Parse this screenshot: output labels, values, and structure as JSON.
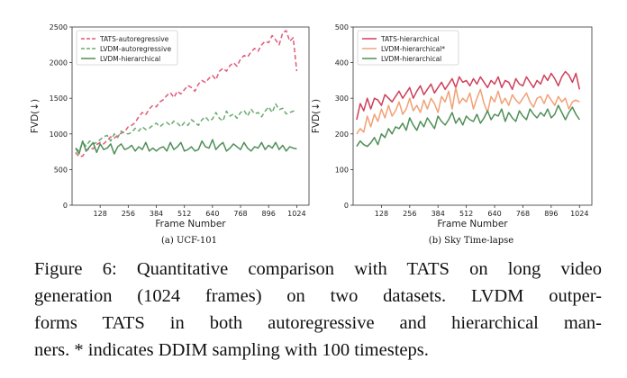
{
  "chart_data": [
    {
      "type": "line",
      "title": "",
      "subcaption": "(a) UCF-101",
      "xlabel": "Frame Number",
      "ylabel": "FVD(↓)",
      "xlim": [
        0,
        1080
      ],
      "ylim": [
        0,
        2500
      ],
      "xticks": [
        128,
        256,
        384,
        512,
        640,
        768,
        896,
        1024
      ],
      "yticks": [
        0,
        500,
        1000,
        1500,
        2000,
        2500
      ],
      "x_start": 16,
      "x_step": 16,
      "series": [
        {
          "name": "TATS-autoregressive",
          "color": "#e05a78",
          "style": "dashed",
          "values": [
            740,
            680,
            690,
            760,
            800,
            790,
            850,
            880,
            860,
            910,
            960,
            940,
            980,
            1010,
            1030,
            1100,
            1120,
            1160,
            1240,
            1300,
            1270,
            1350,
            1400,
            1380,
            1450,
            1480,
            1540,
            1580,
            1510,
            1600,
            1560,
            1620,
            1680,
            1650,
            1600,
            1700,
            1750,
            1720,
            1780,
            1820,
            1760,
            1880,
            1920,
            1880,
            1960,
            2000,
            1950,
            2050,
            2100,
            2080,
            2150,
            2200,
            2160,
            2250,
            2300,
            2280,
            2380,
            2320,
            2250,
            2420,
            2450,
            2300,
            2350,
            1880
          ]
        },
        {
          "name": "LVDM-autoregressive",
          "color": "#6aaa6e",
          "style": "dashed",
          "values": [
            800,
            760,
            880,
            830,
            900,
            860,
            880,
            920,
            960,
            980,
            900,
            1000,
            950,
            1040,
            1010,
            1000,
            1020,
            1080,
            1040,
            1100,
            1060,
            1080,
            1120,
            1150,
            1100,
            1140,
            1160,
            1120,
            1180,
            1150,
            1100,
            1160,
            1120,
            1200,
            1160,
            1120,
            1200,
            1240,
            1180,
            1210,
            1300,
            1220,
            1180,
            1320,
            1250,
            1280,
            1220,
            1300,
            1330,
            1250,
            1350,
            1280,
            1300,
            1240,
            1320,
            1380,
            1300,
            1420,
            1340,
            1360,
            1280,
            1300,
            1320,
            1330
          ]
        },
        {
          "name": "LVDM-hierarchical",
          "color": "#4f8f57",
          "style": "solid",
          "values": [
            800,
            720,
            900,
            760,
            820,
            880,
            740,
            860,
            780,
            800,
            860,
            720,
            820,
            860,
            780,
            800,
            840,
            760,
            820,
            780,
            880,
            760,
            800,
            760,
            800,
            820,
            760,
            880,
            780,
            820,
            880,
            760,
            780,
            820,
            760,
            780,
            900,
            820,
            800,
            920,
            780,
            840,
            880,
            760,
            800,
            860,
            820,
            780,
            880,
            800,
            760,
            820,
            800,
            880,
            780,
            840,
            800,
            880,
            780,
            840,
            760,
            820,
            800,
            790
          ]
        }
      ],
      "legend_loc": "upper-left"
    },
    {
      "type": "line",
      "title": "",
      "subcaption": "(b) Sky Time-lapse",
      "xlabel": "Frame Number",
      "ylabel": "FVD(↓)",
      "xlim": [
        0,
        1080
      ],
      "ylim": [
        0,
        500
      ],
      "xticks": [
        128,
        256,
        384,
        512,
        640,
        768,
        896,
        1024
      ],
      "yticks": [
        0,
        100,
        200,
        300,
        400,
        500
      ],
      "x_start": 16,
      "x_step": 16,
      "series": [
        {
          "name": "TATS-hierarchical",
          "color": "#cf3f5a",
          "style": "solid",
          "values": [
            240,
            285,
            265,
            300,
            270,
            300,
            295,
            280,
            310,
            300,
            290,
            305,
            320,
            300,
            315,
            330,
            300,
            320,
            335,
            310,
            325,
            340,
            315,
            330,
            345,
            325,
            340,
            355,
            330,
            360,
            345,
            350,
            335,
            355,
            340,
            360,
            345,
            330,
            350,
            340,
            360,
            330,
            350,
            345,
            325,
            355,
            340,
            335,
            360,
            345,
            330,
            350,
            340,
            365,
            350,
            370,
            355,
            335,
            360,
            375,
            365,
            345,
            370,
            325
          ]
        },
        {
          "name": "LVDM-hierarchical*",
          "color": "#f0a276",
          "style": "solid",
          "values": [
            200,
            215,
            205,
            250,
            220,
            255,
            235,
            270,
            245,
            280,
            250,
            265,
            290,
            255,
            270,
            300,
            265,
            280,
            260,
            295,
            270,
            300,
            285,
            260,
            305,
            290,
            320,
            270,
            330,
            285,
            300,
            290,
            315,
            270,
            300,
            325,
            285,
            260,
            305,
            290,
            320,
            285,
            300,
            280,
            310,
            295,
            285,
            300,
            315,
            290,
            275,
            300,
            305,
            285,
            310,
            295,
            280,
            305,
            290,
            300,
            270,
            290,
            295,
            290
          ]
        },
        {
          "name": "LVDM-hierarchical",
          "color": "#4f8f57",
          "style": "solid",
          "values": [
            165,
            180,
            170,
            165,
            175,
            190,
            170,
            200,
            190,
            215,
            200,
            220,
            215,
            230,
            210,
            245,
            225,
            210,
            235,
            220,
            245,
            230,
            215,
            250,
            235,
            225,
            240,
            260,
            230,
            245,
            225,
            250,
            240,
            235,
            255,
            230,
            245,
            265,
            240,
            255,
            250,
            270,
            235,
            260,
            245,
            235,
            265,
            250,
            240,
            270,
            255,
            245,
            260,
            250,
            270,
            245,
            255,
            280,
            260,
            240,
            260,
            275,
            255,
            240
          ]
        }
      ],
      "legend_loc": "upper-left"
    }
  ],
  "caption": {
    "lines": [
      "Figure 6: Quantitative comparison with TATS on long video",
      "generation (1024 frames) on two datasets. LVDM outper-",
      "forms TATS in both autoregressive and hierarchical man-",
      "ners. * indicates DDIM sampling with 100 timesteps."
    ]
  }
}
